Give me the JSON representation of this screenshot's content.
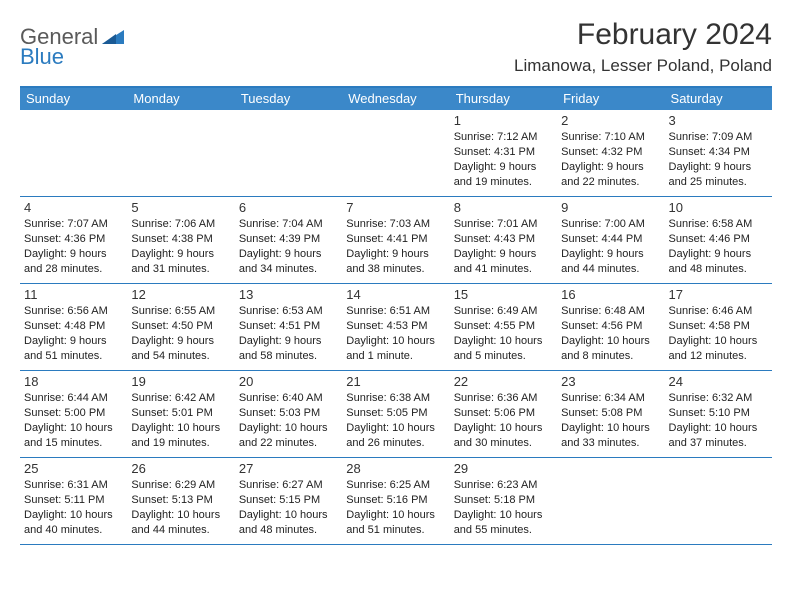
{
  "brand": {
    "general": "General",
    "blue": "Blue"
  },
  "title": "February 2024",
  "location": "Limanowa, Lesser Poland, Poland",
  "colors": {
    "header_bg": "#3b88c9",
    "border": "#2b7bbf",
    "text": "#333333"
  },
  "day_names": [
    "Sunday",
    "Monday",
    "Tuesday",
    "Wednesday",
    "Thursday",
    "Friday",
    "Saturday"
  ],
  "weeks": [
    [
      null,
      null,
      null,
      null,
      {
        "n": "1",
        "sr": "7:12 AM",
        "ss": "4:31 PM",
        "dl1": "Daylight: 9 hours",
        "dl2": "and 19 minutes."
      },
      {
        "n": "2",
        "sr": "7:10 AM",
        "ss": "4:32 PM",
        "dl1": "Daylight: 9 hours",
        "dl2": "and 22 minutes."
      },
      {
        "n": "3",
        "sr": "7:09 AM",
        "ss": "4:34 PM",
        "dl1": "Daylight: 9 hours",
        "dl2": "and 25 minutes."
      }
    ],
    [
      {
        "n": "4",
        "sr": "7:07 AM",
        "ss": "4:36 PM",
        "dl1": "Daylight: 9 hours",
        "dl2": "and 28 minutes."
      },
      {
        "n": "5",
        "sr": "7:06 AM",
        "ss": "4:38 PM",
        "dl1": "Daylight: 9 hours",
        "dl2": "and 31 minutes."
      },
      {
        "n": "6",
        "sr": "7:04 AM",
        "ss": "4:39 PM",
        "dl1": "Daylight: 9 hours",
        "dl2": "and 34 minutes."
      },
      {
        "n": "7",
        "sr": "7:03 AM",
        "ss": "4:41 PM",
        "dl1": "Daylight: 9 hours",
        "dl2": "and 38 minutes."
      },
      {
        "n": "8",
        "sr": "7:01 AM",
        "ss": "4:43 PM",
        "dl1": "Daylight: 9 hours",
        "dl2": "and 41 minutes."
      },
      {
        "n": "9",
        "sr": "7:00 AM",
        "ss": "4:44 PM",
        "dl1": "Daylight: 9 hours",
        "dl2": "and 44 minutes."
      },
      {
        "n": "10",
        "sr": "6:58 AM",
        "ss": "4:46 PM",
        "dl1": "Daylight: 9 hours",
        "dl2": "and 48 minutes."
      }
    ],
    [
      {
        "n": "11",
        "sr": "6:56 AM",
        "ss": "4:48 PM",
        "dl1": "Daylight: 9 hours",
        "dl2": "and 51 minutes."
      },
      {
        "n": "12",
        "sr": "6:55 AM",
        "ss": "4:50 PM",
        "dl1": "Daylight: 9 hours",
        "dl2": "and 54 minutes."
      },
      {
        "n": "13",
        "sr": "6:53 AM",
        "ss": "4:51 PM",
        "dl1": "Daylight: 9 hours",
        "dl2": "and 58 minutes."
      },
      {
        "n": "14",
        "sr": "6:51 AM",
        "ss": "4:53 PM",
        "dl1": "Daylight: 10 hours",
        "dl2": "and 1 minute."
      },
      {
        "n": "15",
        "sr": "6:49 AM",
        "ss": "4:55 PM",
        "dl1": "Daylight: 10 hours",
        "dl2": "and 5 minutes."
      },
      {
        "n": "16",
        "sr": "6:48 AM",
        "ss": "4:56 PM",
        "dl1": "Daylight: 10 hours",
        "dl2": "and 8 minutes."
      },
      {
        "n": "17",
        "sr": "6:46 AM",
        "ss": "4:58 PM",
        "dl1": "Daylight: 10 hours",
        "dl2": "and 12 minutes."
      }
    ],
    [
      {
        "n": "18",
        "sr": "6:44 AM",
        "ss": "5:00 PM",
        "dl1": "Daylight: 10 hours",
        "dl2": "and 15 minutes."
      },
      {
        "n": "19",
        "sr": "6:42 AM",
        "ss": "5:01 PM",
        "dl1": "Daylight: 10 hours",
        "dl2": "and 19 minutes."
      },
      {
        "n": "20",
        "sr": "6:40 AM",
        "ss": "5:03 PM",
        "dl1": "Daylight: 10 hours",
        "dl2": "and 22 minutes."
      },
      {
        "n": "21",
        "sr": "6:38 AM",
        "ss": "5:05 PM",
        "dl1": "Daylight: 10 hours",
        "dl2": "and 26 minutes."
      },
      {
        "n": "22",
        "sr": "6:36 AM",
        "ss": "5:06 PM",
        "dl1": "Daylight: 10 hours",
        "dl2": "and 30 minutes."
      },
      {
        "n": "23",
        "sr": "6:34 AM",
        "ss": "5:08 PM",
        "dl1": "Daylight: 10 hours",
        "dl2": "and 33 minutes."
      },
      {
        "n": "24",
        "sr": "6:32 AM",
        "ss": "5:10 PM",
        "dl1": "Daylight: 10 hours",
        "dl2": "and 37 minutes."
      }
    ],
    [
      {
        "n": "25",
        "sr": "6:31 AM",
        "ss": "5:11 PM",
        "dl1": "Daylight: 10 hours",
        "dl2": "and 40 minutes."
      },
      {
        "n": "26",
        "sr": "6:29 AM",
        "ss": "5:13 PM",
        "dl1": "Daylight: 10 hours",
        "dl2": "and 44 minutes."
      },
      {
        "n": "27",
        "sr": "6:27 AM",
        "ss": "5:15 PM",
        "dl1": "Daylight: 10 hours",
        "dl2": "and 48 minutes."
      },
      {
        "n": "28",
        "sr": "6:25 AM",
        "ss": "5:16 PM",
        "dl1": "Daylight: 10 hours",
        "dl2": "and 51 minutes."
      },
      {
        "n": "29",
        "sr": "6:23 AM",
        "ss": "5:18 PM",
        "dl1": "Daylight: 10 hours",
        "dl2": "and 55 minutes."
      },
      null,
      null
    ]
  ]
}
